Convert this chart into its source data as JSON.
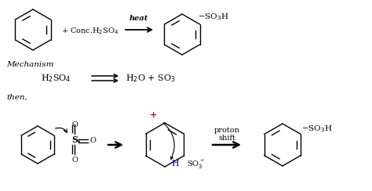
{
  "bg_color": "#ffffff",
  "text_color": "#000000",
  "blue_color": "#0000cd",
  "red_color": "#cc0000",
  "figsize": [
    4.74,
    2.44
  ],
  "dpi": 100,
  "xlim": [
    0,
    474
  ],
  "ylim": [
    0,
    244
  ]
}
